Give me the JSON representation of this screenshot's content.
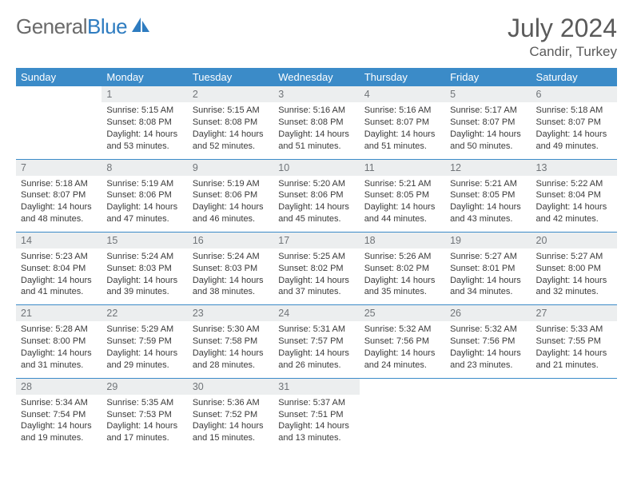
{
  "brand": {
    "part1": "General",
    "part2": "Blue"
  },
  "title": {
    "month_year": "July 2024",
    "location": "Candir, Turkey"
  },
  "colors": {
    "header_bg": "#3b8bc8",
    "header_text": "#ffffff",
    "daynum_bg": "#eceeef",
    "daynum_text": "#707478",
    "body_text": "#3a3a3a",
    "divider": "#3b8bc8",
    "logo_gray": "#6a6a6a",
    "logo_blue": "#2e7cc0"
  },
  "weekdays": [
    "Sunday",
    "Monday",
    "Tuesday",
    "Wednesday",
    "Thursday",
    "Friday",
    "Saturday"
  ],
  "weeks": [
    {
      "nums": [
        "",
        "1",
        "2",
        "3",
        "4",
        "5",
        "6"
      ],
      "cells": [
        {},
        {
          "sunrise": "Sunrise: 5:15 AM",
          "sunset": "Sunset: 8:08 PM",
          "day1": "Daylight: 14 hours",
          "day2": "and 53 minutes."
        },
        {
          "sunrise": "Sunrise: 5:15 AM",
          "sunset": "Sunset: 8:08 PM",
          "day1": "Daylight: 14 hours",
          "day2": "and 52 minutes."
        },
        {
          "sunrise": "Sunrise: 5:16 AM",
          "sunset": "Sunset: 8:08 PM",
          "day1": "Daylight: 14 hours",
          "day2": "and 51 minutes."
        },
        {
          "sunrise": "Sunrise: 5:16 AM",
          "sunset": "Sunset: 8:07 PM",
          "day1": "Daylight: 14 hours",
          "day2": "and 51 minutes."
        },
        {
          "sunrise": "Sunrise: 5:17 AM",
          "sunset": "Sunset: 8:07 PM",
          "day1": "Daylight: 14 hours",
          "day2": "and 50 minutes."
        },
        {
          "sunrise": "Sunrise: 5:18 AM",
          "sunset": "Sunset: 8:07 PM",
          "day1": "Daylight: 14 hours",
          "day2": "and 49 minutes."
        }
      ]
    },
    {
      "nums": [
        "7",
        "8",
        "9",
        "10",
        "11",
        "12",
        "13"
      ],
      "cells": [
        {
          "sunrise": "Sunrise: 5:18 AM",
          "sunset": "Sunset: 8:07 PM",
          "day1": "Daylight: 14 hours",
          "day2": "and 48 minutes."
        },
        {
          "sunrise": "Sunrise: 5:19 AM",
          "sunset": "Sunset: 8:06 PM",
          "day1": "Daylight: 14 hours",
          "day2": "and 47 minutes."
        },
        {
          "sunrise": "Sunrise: 5:19 AM",
          "sunset": "Sunset: 8:06 PM",
          "day1": "Daylight: 14 hours",
          "day2": "and 46 minutes."
        },
        {
          "sunrise": "Sunrise: 5:20 AM",
          "sunset": "Sunset: 8:06 PM",
          "day1": "Daylight: 14 hours",
          "day2": "and 45 minutes."
        },
        {
          "sunrise": "Sunrise: 5:21 AM",
          "sunset": "Sunset: 8:05 PM",
          "day1": "Daylight: 14 hours",
          "day2": "and 44 minutes."
        },
        {
          "sunrise": "Sunrise: 5:21 AM",
          "sunset": "Sunset: 8:05 PM",
          "day1": "Daylight: 14 hours",
          "day2": "and 43 minutes."
        },
        {
          "sunrise": "Sunrise: 5:22 AM",
          "sunset": "Sunset: 8:04 PM",
          "day1": "Daylight: 14 hours",
          "day2": "and 42 minutes."
        }
      ]
    },
    {
      "nums": [
        "14",
        "15",
        "16",
        "17",
        "18",
        "19",
        "20"
      ],
      "cells": [
        {
          "sunrise": "Sunrise: 5:23 AM",
          "sunset": "Sunset: 8:04 PM",
          "day1": "Daylight: 14 hours",
          "day2": "and 41 minutes."
        },
        {
          "sunrise": "Sunrise: 5:24 AM",
          "sunset": "Sunset: 8:03 PM",
          "day1": "Daylight: 14 hours",
          "day2": "and 39 minutes."
        },
        {
          "sunrise": "Sunrise: 5:24 AM",
          "sunset": "Sunset: 8:03 PM",
          "day1": "Daylight: 14 hours",
          "day2": "and 38 minutes."
        },
        {
          "sunrise": "Sunrise: 5:25 AM",
          "sunset": "Sunset: 8:02 PM",
          "day1": "Daylight: 14 hours",
          "day2": "and 37 minutes."
        },
        {
          "sunrise": "Sunrise: 5:26 AM",
          "sunset": "Sunset: 8:02 PM",
          "day1": "Daylight: 14 hours",
          "day2": "and 35 minutes."
        },
        {
          "sunrise": "Sunrise: 5:27 AM",
          "sunset": "Sunset: 8:01 PM",
          "day1": "Daylight: 14 hours",
          "day2": "and 34 minutes."
        },
        {
          "sunrise": "Sunrise: 5:27 AM",
          "sunset": "Sunset: 8:00 PM",
          "day1": "Daylight: 14 hours",
          "day2": "and 32 minutes."
        }
      ]
    },
    {
      "nums": [
        "21",
        "22",
        "23",
        "24",
        "25",
        "26",
        "27"
      ],
      "cells": [
        {
          "sunrise": "Sunrise: 5:28 AM",
          "sunset": "Sunset: 8:00 PM",
          "day1": "Daylight: 14 hours",
          "day2": "and 31 minutes."
        },
        {
          "sunrise": "Sunrise: 5:29 AM",
          "sunset": "Sunset: 7:59 PM",
          "day1": "Daylight: 14 hours",
          "day2": "and 29 minutes."
        },
        {
          "sunrise": "Sunrise: 5:30 AM",
          "sunset": "Sunset: 7:58 PM",
          "day1": "Daylight: 14 hours",
          "day2": "and 28 minutes."
        },
        {
          "sunrise": "Sunrise: 5:31 AM",
          "sunset": "Sunset: 7:57 PM",
          "day1": "Daylight: 14 hours",
          "day2": "and 26 minutes."
        },
        {
          "sunrise": "Sunrise: 5:32 AM",
          "sunset": "Sunset: 7:56 PM",
          "day1": "Daylight: 14 hours",
          "day2": "and 24 minutes."
        },
        {
          "sunrise": "Sunrise: 5:32 AM",
          "sunset": "Sunset: 7:56 PM",
          "day1": "Daylight: 14 hours",
          "day2": "and 23 minutes."
        },
        {
          "sunrise": "Sunrise: 5:33 AM",
          "sunset": "Sunset: 7:55 PM",
          "day1": "Daylight: 14 hours",
          "day2": "and 21 minutes."
        }
      ]
    },
    {
      "nums": [
        "28",
        "29",
        "30",
        "31",
        "",
        "",
        ""
      ],
      "cells": [
        {
          "sunrise": "Sunrise: 5:34 AM",
          "sunset": "Sunset: 7:54 PM",
          "day1": "Daylight: 14 hours",
          "day2": "and 19 minutes."
        },
        {
          "sunrise": "Sunrise: 5:35 AM",
          "sunset": "Sunset: 7:53 PM",
          "day1": "Daylight: 14 hours",
          "day2": "and 17 minutes."
        },
        {
          "sunrise": "Sunrise: 5:36 AM",
          "sunset": "Sunset: 7:52 PM",
          "day1": "Daylight: 14 hours",
          "day2": "and 15 minutes."
        },
        {
          "sunrise": "Sunrise: 5:37 AM",
          "sunset": "Sunset: 7:51 PM",
          "day1": "Daylight: 14 hours",
          "day2": "and 13 minutes."
        },
        {},
        {},
        {}
      ]
    }
  ]
}
